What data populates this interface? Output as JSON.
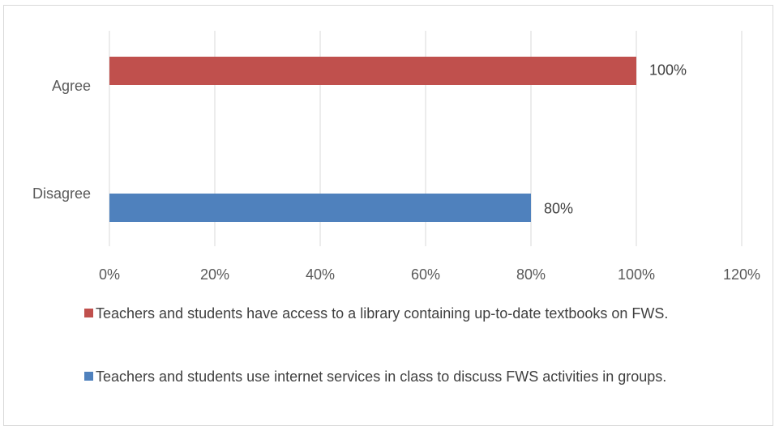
{
  "chart_data": {
    "type": "bar",
    "orientation": "horizontal",
    "categories": [
      "Agree",
      "Disagree"
    ],
    "series": [
      {
        "name": "Teachers and students have access to a library containing up-to-date textbooks on FWS.",
        "color": "#c0504d",
        "category": "Agree",
        "value": 100,
        "label": "100%"
      },
      {
        "name": "Teachers and students use internet services in class to discuss FWS activities in groups.",
        "color": "#4f81bd",
        "category": "Disagree",
        "value": 80,
        "label": "80%"
      }
    ],
    "xlim": [
      0,
      120
    ],
    "xticks": [
      "0%",
      "20%",
      "40%",
      "60%",
      "80%",
      "100%",
      "120%"
    ],
    "grid": true,
    "legend_position": "bottom",
    "title": "",
    "xlabel": "",
    "ylabel": ""
  }
}
